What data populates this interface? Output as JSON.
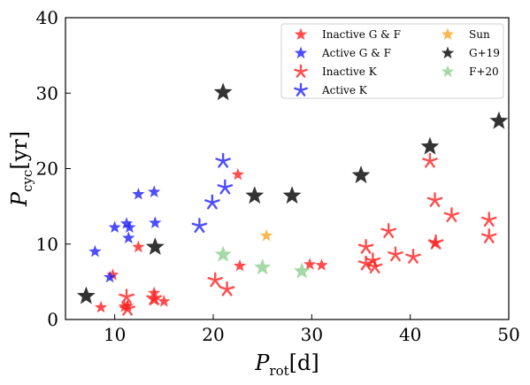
{
  "chart_data": {
    "type": "scatter",
    "xlabel": {
      "main": "P",
      "sub": "rot",
      "unit": "[d]"
    },
    "ylabel": {
      "main": "P",
      "sub": "cyc",
      "unit": "[yr]"
    },
    "xlim": [
      5,
      50
    ],
    "ylim": [
      0,
      40
    ],
    "xticks": [
      10,
      20,
      30,
      40,
      50
    ],
    "yticks": [
      0,
      10,
      20,
      30,
      40
    ],
    "grid": false,
    "legend_position": "top-right",
    "legend_columns": 2,
    "series": [
      {
        "name": "Inactive G & F",
        "marker": "filled-star",
        "color": "#ff2020",
        "points": [
          [
            8.6,
            1.6
          ],
          [
            9.8,
            5.9
          ],
          [
            11.0,
            1.7
          ],
          [
            11.3,
            1.8
          ],
          [
            12.4,
            9.6
          ],
          [
            14.0,
            3.5
          ],
          [
            14.0,
            2.6
          ],
          [
            15.0,
            2.4
          ],
          [
            22.5,
            19.2
          ],
          [
            22.7,
            7.1
          ],
          [
            29.8,
            7.3
          ],
          [
            31.0,
            7.2
          ],
          [
            42.5,
            10.1
          ]
        ]
      },
      {
        "name": "Active G & F",
        "marker": "filled-star",
        "color": "#2020ff",
        "points": [
          [
            8.0,
            9.0
          ],
          [
            9.5,
            5.6
          ],
          [
            10.0,
            12.2
          ],
          [
            11.2,
            12.7
          ],
          [
            11.5,
            12.2
          ],
          [
            11.4,
            10.8
          ],
          [
            12.4,
            16.6
          ],
          [
            14.0,
            16.9
          ],
          [
            14.1,
            12.8
          ]
        ]
      },
      {
        "name": "Inactive K",
        "marker": "asterisk-star",
        "color": "#ff2020",
        "points": [
          [
            11.2,
            3.0
          ],
          [
            11.3,
            1.4
          ],
          [
            14.0,
            2.8
          ],
          [
            20.2,
            5.2
          ],
          [
            21.4,
            4.0
          ],
          [
            35.5,
            9.6
          ],
          [
            35.5,
            7.4
          ],
          [
            36.2,
            7.8
          ],
          [
            36.4,
            7.0
          ],
          [
            37.8,
            11.7
          ],
          [
            38.5,
            8.6
          ],
          [
            40.3,
            8.3
          ],
          [
            42.0,
            21.0
          ],
          [
            42.5,
            15.8
          ],
          [
            42.6,
            10.2
          ],
          [
            44.2,
            13.8
          ],
          [
            48.0,
            13.2
          ],
          [
            48.0,
            11.0
          ]
        ]
      },
      {
        "name": "Active K",
        "marker": "asterisk-star",
        "color": "#2020ff",
        "points": [
          [
            18.6,
            12.4
          ],
          [
            19.9,
            15.5
          ],
          [
            21.0,
            21.0
          ],
          [
            21.2,
            17.5
          ]
        ]
      },
      {
        "name": "Sun",
        "marker": "filled-star",
        "color": "#f5a623",
        "points": [
          [
            25.4,
            11.1
          ]
        ]
      },
      {
        "name": "G+19",
        "marker": "filled-star",
        "color": "#000000",
        "points": [
          [
            7.1,
            3.1
          ],
          [
            14.1,
            9.6
          ],
          [
            21.0,
            30.1
          ],
          [
            24.2,
            16.4
          ],
          [
            28.0,
            16.4
          ],
          [
            35.0,
            19.1
          ],
          [
            42.0,
            22.9
          ],
          [
            49.0,
            26.3
          ]
        ]
      },
      {
        "name": "F+20",
        "marker": "filled-star",
        "color": "#8fcf8f",
        "points": [
          [
            21.0,
            8.6
          ],
          [
            25.0,
            6.9
          ],
          [
            29.0,
            6.4
          ]
        ]
      }
    ]
  }
}
